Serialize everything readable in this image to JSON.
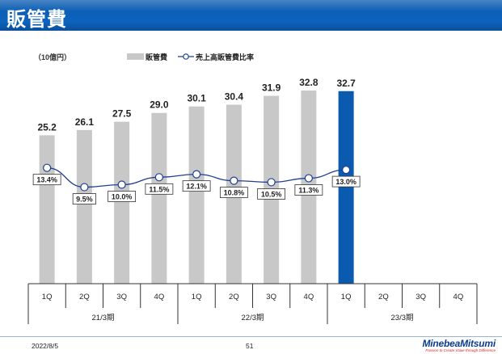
{
  "page": {
    "title": "販管費",
    "date": "2022/8/5",
    "page_number": "51",
    "logo_text": "MinebeaMitsumi",
    "logo_tagline": "Passion to Create Value through Difference"
  },
  "chart_data": {
    "type": "bar",
    "unit_label": "（10億円）",
    "categories": [
      "1Q",
      "2Q",
      "3Q",
      "4Q",
      "1Q",
      "2Q",
      "3Q",
      "4Q",
      "1Q",
      "2Q",
      "3Q",
      "4Q"
    ],
    "groups": [
      {
        "label": "21/3期",
        "count": 4
      },
      {
        "label": "22/3期",
        "count": 4
      },
      {
        "label": "23/3期",
        "count": 4
      }
    ],
    "series": [
      {
        "name": "販管費",
        "type": "bar",
        "values": [
          25.2,
          26.1,
          27.5,
          29.0,
          30.1,
          30.4,
          31.9,
          32.8,
          32.7,
          null,
          null,
          null
        ],
        "value_labels": [
          "25.2",
          "26.1",
          "27.5",
          "29.0",
          "30.1",
          "30.4",
          "31.9",
          "32.8",
          "32.7",
          "",
          "",
          ""
        ],
        "color": "#c8c8c8",
        "highlight_color": "#0a5bb0",
        "highlight_index": 8
      },
      {
        "name": "売上高販管費比率",
        "type": "line",
        "values": [
          13.4,
          9.5,
          10.0,
          11.5,
          12.1,
          10.8,
          10.5,
          11.3,
          13.0,
          null,
          null,
          null
        ],
        "value_labels": [
          "13.4%",
          "9.5%",
          "10.0%",
          "11.5%",
          "12.1%",
          "10.8%",
          "10.5%",
          "11.3%",
          "13.0%",
          "",
          "",
          ""
        ],
        "color": "#1f3f8f"
      }
    ],
    "bar_ylim": [
      0,
      35
    ],
    "line_ylim": [
      -10,
      30
    ],
    "legend_position": "top"
  }
}
